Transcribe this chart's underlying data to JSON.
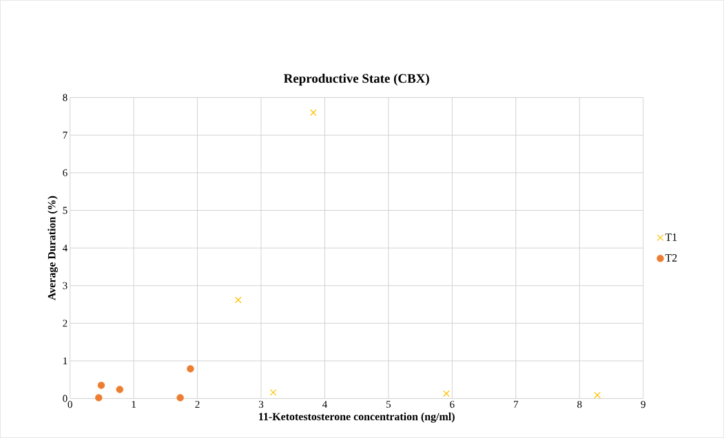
{
  "chart_data": {
    "type": "scatter",
    "title": "Reproductive State (CBX)",
    "xlabel": "11-Ketotestosterone concentration (ng/ml)",
    "ylabel": "Average Duration (%)",
    "xlim": [
      0,
      9
    ],
    "ylim": [
      0,
      8
    ],
    "xticks": [
      0,
      1,
      2,
      3,
      4,
      5,
      6,
      7,
      8,
      9
    ],
    "yticks": [
      0,
      1,
      2,
      3,
      4,
      5,
      6,
      7,
      8
    ],
    "grid": true,
    "legend": "right",
    "series": [
      {
        "name": "T1",
        "color": "#ffc000",
        "marker": "cross",
        "x": [
          3.82,
          2.64,
          3.19,
          5.91,
          8.28
        ],
        "values": [
          7.6,
          2.62,
          0.16,
          0.13,
          0.09
        ]
      },
      {
        "name": "T2",
        "color": "#ed7d31",
        "marker": "circle",
        "x": [
          0.45,
          0.49,
          0.78,
          1.73,
          1.89
        ],
        "values": [
          0.02,
          0.35,
          0.24,
          0.02,
          0.79
        ]
      }
    ]
  }
}
